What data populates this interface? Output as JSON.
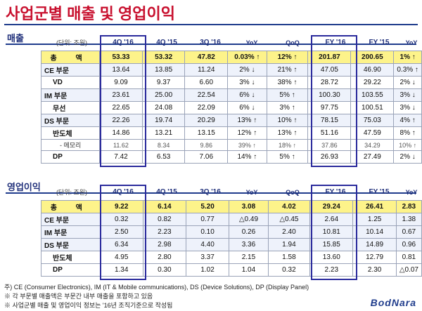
{
  "title": "사업군별 매출 및 영업이익",
  "revenue": {
    "section_label": "매출",
    "unit": "(단위: 조원)",
    "columns": [
      "4Q '16",
      "4Q '15",
      "3Q '16",
      "YoY",
      "QoQ",
      "FY '16",
      "FY '15",
      "YoY"
    ],
    "rows": [
      {
        "label": "총   액",
        "cls": "total",
        "cells": [
          "53.33",
          "53.32",
          "47.82",
          "0.03% ↑",
          "12% ↑",
          "201.87",
          "200.65",
          "1% ↑"
        ]
      },
      {
        "label": "CE 부문",
        "cls": "main",
        "cells": [
          "13.64",
          "13.85",
          "11.24",
          "2% ↓",
          "21% ↑",
          "47.05",
          "46.90",
          "0.3% ↑"
        ]
      },
      {
        "label": "VD",
        "cls": "sub",
        "cells": [
          "9.09",
          "9.37",
          "6.60",
          "3% ↓",
          "38% ↑",
          "28.72",
          "29.22",
          "2% ↓"
        ]
      },
      {
        "label": "IM 부문",
        "cls": "main",
        "cells": [
          "23.61",
          "25.00",
          "22.54",
          "6% ↓",
          "5% ↑",
          "100.30",
          "103.55",
          "3% ↓"
        ]
      },
      {
        "label": "무선",
        "cls": "sub",
        "cells": [
          "22.65",
          "24.08",
          "22.09",
          "6% ↓",
          "3% ↑",
          "97.75",
          "100.51",
          "3% ↓"
        ]
      },
      {
        "label": "DS 부문",
        "cls": "main",
        "cells": [
          "22.26",
          "19.74",
          "20.29",
          "13% ↑",
          "10% ↑",
          "78.15",
          "75.03",
          "4% ↑"
        ]
      },
      {
        "label": "반도체",
        "cls": "sub",
        "cells": [
          "14.86",
          "13.21",
          "13.15",
          "12% ↑",
          "13% ↑",
          "51.16",
          "47.59",
          "8% ↑"
        ]
      },
      {
        "label": "- 메모리",
        "cls": "sub2",
        "cells": [
          "11.62",
          "8.34",
          "9.86",
          "39% ↑",
          "18% ↑",
          "37.86",
          "34.29",
          "10% ↑"
        ]
      },
      {
        "label": "DP",
        "cls": "sub",
        "cells": [
          "7.42",
          "6.53",
          "7.06",
          "14% ↑",
          "5% ↑",
          "26.93",
          "27.49",
          "2% ↓"
        ]
      }
    ]
  },
  "op_income": {
    "section_label": "영업이익",
    "unit": "(단위: 조원)",
    "columns": [
      "4Q '16",
      "4Q '15",
      "3Q '16",
      "YoY",
      "QoQ",
      "FY '16",
      "FY '15",
      "YoY"
    ],
    "rows": [
      {
        "label": "총   액",
        "cls": "total",
        "cells": [
          "9.22",
          "6.14",
          "5.20",
          "3.08",
          "4.02",
          "29.24",
          "26.41",
          "2.83"
        ]
      },
      {
        "label": "CE 부문",
        "cls": "main",
        "cells": [
          "0.32",
          "0.82",
          "0.77",
          "△0.49",
          "△0.45",
          "2.64",
          "1.25",
          "1.38"
        ]
      },
      {
        "label": "IM 부문",
        "cls": "main",
        "cells": [
          "2.50",
          "2.23",
          "0.10",
          "0.26",
          "2.40",
          "10.81",
          "10.14",
          "0.67"
        ]
      },
      {
        "label": "DS 부문",
        "cls": "main",
        "cells": [
          "6.34",
          "2.98",
          "4.40",
          "3.36",
          "1.94",
          "15.85",
          "14.89",
          "0.96"
        ]
      },
      {
        "label": "반도체",
        "cls": "sub",
        "cells": [
          "4.95",
          "2.80",
          "3.37",
          "2.15",
          "1.58",
          "13.60",
          "12.79",
          "0.81"
        ]
      },
      {
        "label": "DP",
        "cls": "sub",
        "cells": [
          "1.34",
          "0.30",
          "1.02",
          "1.04",
          "0.32",
          "2.23",
          "2.30",
          "△0.07"
        ]
      }
    ]
  },
  "footnotes": [
    "주) CE (Consumer Electronics), IM (IT & Mobile communications), DS (Device Solutions), DP (Display Panel)",
    "※ 각 부문별 매출액은 부문간 내부 매출을 포함하고 있음",
    "※ 사업군별 매출 및 영업이익 정보는 '16년 조직기준으로 작성됨"
  ],
  "logo": "BodNara"
}
